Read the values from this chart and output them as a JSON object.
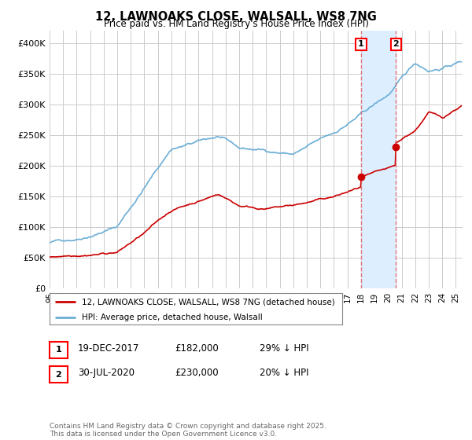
{
  "title": "12, LAWNOAKS CLOSE, WALSALL, WS8 7NG",
  "subtitle": "Price paid vs. HM Land Registry's House Price Index (HPI)",
  "ylabel_ticks": [
    "£0",
    "£50K",
    "£100K",
    "£150K",
    "£200K",
    "£250K",
    "£300K",
    "£350K",
    "£400K"
  ],
  "ytick_values": [
    0,
    50000,
    100000,
    150000,
    200000,
    250000,
    300000,
    350000,
    400000
  ],
  "ylim": [
    0,
    420000
  ],
  "xlim_start": 1995.0,
  "xlim_end": 2025.5,
  "hpi_color": "#6baed6",
  "price_color": "#cc0000",
  "vline_color": "#e06060",
  "shade_color": "#ddeeff",
  "marker1_x": 2018.0,
  "marker2_x": 2020.58,
  "marker1_y_price": 182000,
  "marker2_y_price": 230000,
  "legend_label_price": "12, LAWNOAKS CLOSE, WALSALL, WS8 7NG (detached house)",
  "legend_label_hpi": "HPI: Average price, detached house, Walsall",
  "table_row1": [
    "1",
    "19-DEC-2017",
    "£182,000",
    "29% ↓ HPI"
  ],
  "table_row2": [
    "2",
    "30-JUL-2020",
    "£230,000",
    "20% ↓ HPI"
  ],
  "footer": "Contains HM Land Registry data © Crown copyright and database right 2025.\nThis data is licensed under the Open Government Licence v3.0.",
  "background_color": "#ffffff",
  "plot_bg_color": "#ffffff",
  "grid_color": "#cccccc"
}
